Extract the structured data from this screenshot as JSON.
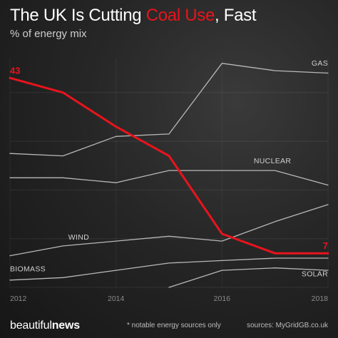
{
  "header": {
    "title_part1": "The UK Is Cutting ",
    "title_highlight": "Coal Use",
    "title_part2": ", Fast",
    "subtitle": "% of energy mix"
  },
  "footer": {
    "brand_light": "beautiful",
    "brand_bold": "news",
    "note": "* notable energy sources only",
    "source": "sources: MyGridGB.co.uk"
  },
  "colors": {
    "coal": "#e8141c",
    "other": "#b8b8b8",
    "text": "#d0d0d0"
  },
  "chart_data": {
    "type": "line",
    "title": "The UK Is Cutting Coal Use, Fast",
    "subtitle": "% of energy mix",
    "x": [
      2012,
      2013,
      2014,
      2015,
      2016,
      2017,
      2018
    ],
    "xticks": [
      "2012",
      "2014",
      "2016",
      "2018"
    ],
    "xlim": [
      2012,
      2018
    ],
    "ylim": [
      0,
      47
    ],
    "grid": "horizontal",
    "series": [
      {
        "name": "GAS",
        "values": [
          27.5,
          27,
          31,
          31.5,
          46,
          44.5,
          44
        ],
        "label_x": 2017.8,
        "label_y": 45.5
      },
      {
        "name": "NUCLEAR",
        "values": [
          22.5,
          22.5,
          21.5,
          24,
          24,
          24,
          21
        ],
        "label_x": 2016.6,
        "label_y": 25.5
      },
      {
        "name": "WIND",
        "values": [
          6.5,
          8.5,
          9.5,
          10.5,
          9.5,
          13.5,
          17
        ],
        "label_x": 2013.1,
        "label_y": 9.8
      },
      {
        "name": "BIOMASS",
        "values": [
          1.5,
          2,
          3.5,
          5,
          5.5,
          6,
          6
        ],
        "label_x": 2012.0,
        "label_y": 3.3
      },
      {
        "name": "SOLAR",
        "values": [
          null,
          null,
          null,
          0,
          3.5,
          4,
          3.5
        ],
        "label_x": 2017.8,
        "label_y": 2.3
      },
      {
        "name": "COAL",
        "values": [
          43,
          40,
          33,
          27,
          11,
          7,
          7
        ],
        "highlight": true
      }
    ],
    "annotations": [
      {
        "text": "43",
        "x": 2012,
        "y": 43
      },
      {
        "text": "7",
        "x": 2018,
        "y": 7
      }
    ]
  }
}
